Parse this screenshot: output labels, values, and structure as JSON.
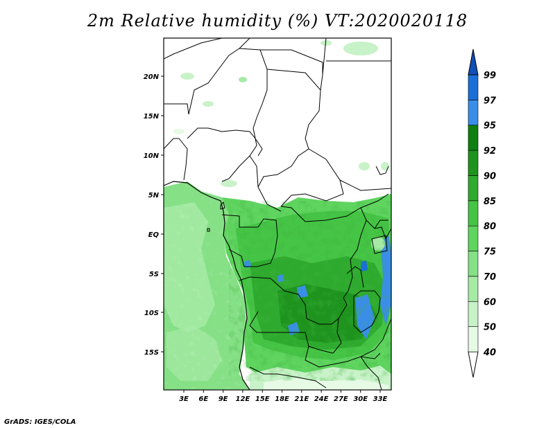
{
  "title": "2m Relative humidity (%) VT:2020020118",
  "footer": "GrADS: IGES/COLA",
  "map": {
    "lat_ticks": [
      "20N",
      "15N",
      "10N",
      "5N",
      "EQ",
      "5S",
      "10S",
      "15S"
    ],
    "lon_ticks": [
      "3E",
      "6E",
      "9E",
      "12E",
      "15E",
      "18E",
      "21E",
      "24E",
      "27E",
      "30E",
      "33E"
    ]
  },
  "colorbar": {
    "levels": [
      "40",
      "50",
      "60",
      "70",
      "75",
      "80",
      "85",
      "90",
      "92",
      "95",
      "97",
      "99"
    ],
    "colors": [
      "#ffffff",
      "#e6fae6",
      "#c8f2c8",
      "#a6eaa6",
      "#86e086",
      "#5fd45f",
      "#45c445",
      "#2eaa2e",
      "#1e941e",
      "#0f7f0f",
      "#3a8ee8",
      "#1a6fd8",
      "#1050b8"
    ]
  }
}
